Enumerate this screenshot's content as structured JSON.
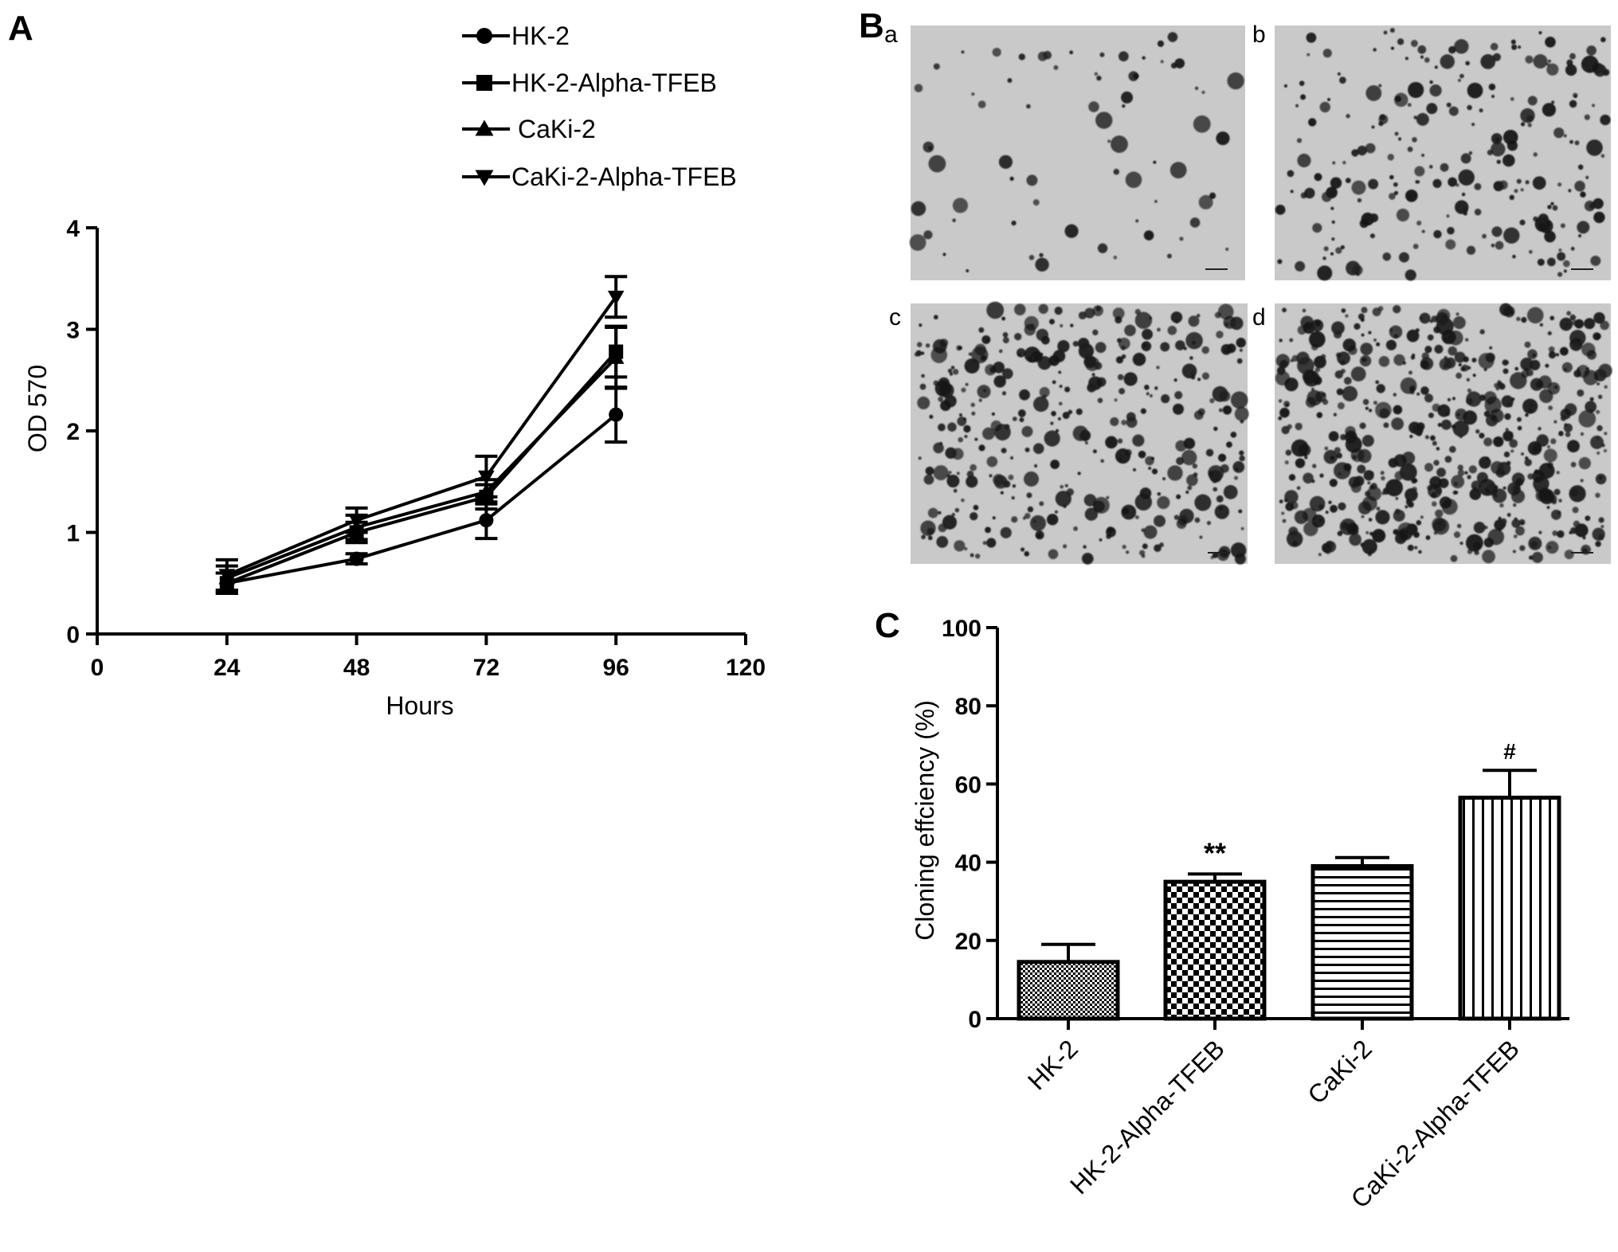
{
  "panels": {
    "a": "A",
    "b": "B",
    "c": "C"
  },
  "micrograph_labels": [
    "a",
    "b",
    "c",
    "d"
  ],
  "colors": {
    "ink": "#000000",
    "micrograph_bg": "#c9c9c9",
    "colony": "#1a1a1a"
  },
  "chart_data": [
    {
      "type": "line",
      "panel": "A",
      "xlabel": "Hours",
      "ylabel": "OD 570",
      "xlim": [
        0,
        120
      ],
      "ylim": [
        0,
        4
      ],
      "xticks": [
        0,
        24,
        48,
        72,
        96,
        120
      ],
      "yticks": [
        0,
        1,
        2,
        3,
        4
      ],
      "x": [
        24,
        48,
        72,
        96
      ],
      "legend_position": "top",
      "series": [
        {
          "name": "HK-2",
          "marker": "circle",
          "values": [
            0.5,
            0.74,
            1.12,
            2.16
          ],
          "errors": [
            0.1,
            0.05,
            0.18,
            0.27
          ]
        },
        {
          "name": "HK-2-Alpha-TFEB",
          "marker": "square",
          "values": [
            0.5,
            1.0,
            1.35,
            2.78
          ],
          "errors": [
            0.1,
            0.1,
            0.12,
            0.25
          ]
        },
        {
          "name": "CaKi-2",
          "marker": "triangle",
          "values": [
            0.55,
            1.05,
            1.4,
            2.72
          ],
          "errors": [
            0.12,
            0.12,
            0.12,
            0.3
          ]
        },
        {
          "name": "CaKi-2-Alpha-TFEB",
          "marker": "triangle-down",
          "values": [
            0.58,
            1.12,
            1.55,
            3.32
          ],
          "errors": [
            0.15,
            0.12,
            0.2,
            0.2
          ]
        }
      ]
    },
    {
      "type": "bar",
      "panel": "C",
      "ylabel": "Cloning effciency (%)",
      "ylim": [
        0,
        100
      ],
      "yticks": [
        0,
        20,
        40,
        60,
        80,
        100
      ],
      "categories": [
        "HK-2",
        "HK-2-Alpha-TFEB",
        "CaKi-2",
        "CaKi-2-Alpha-TFEB"
      ],
      "values": [
        14.5,
        35,
        39,
        56.5
      ],
      "errors": [
        4.5,
        2,
        2.2,
        7
      ],
      "patterns": [
        "dense-dots",
        "checker",
        "horizontal",
        "vertical"
      ],
      "annotations": [
        "",
        "**",
        "",
        "#"
      ]
    }
  ]
}
